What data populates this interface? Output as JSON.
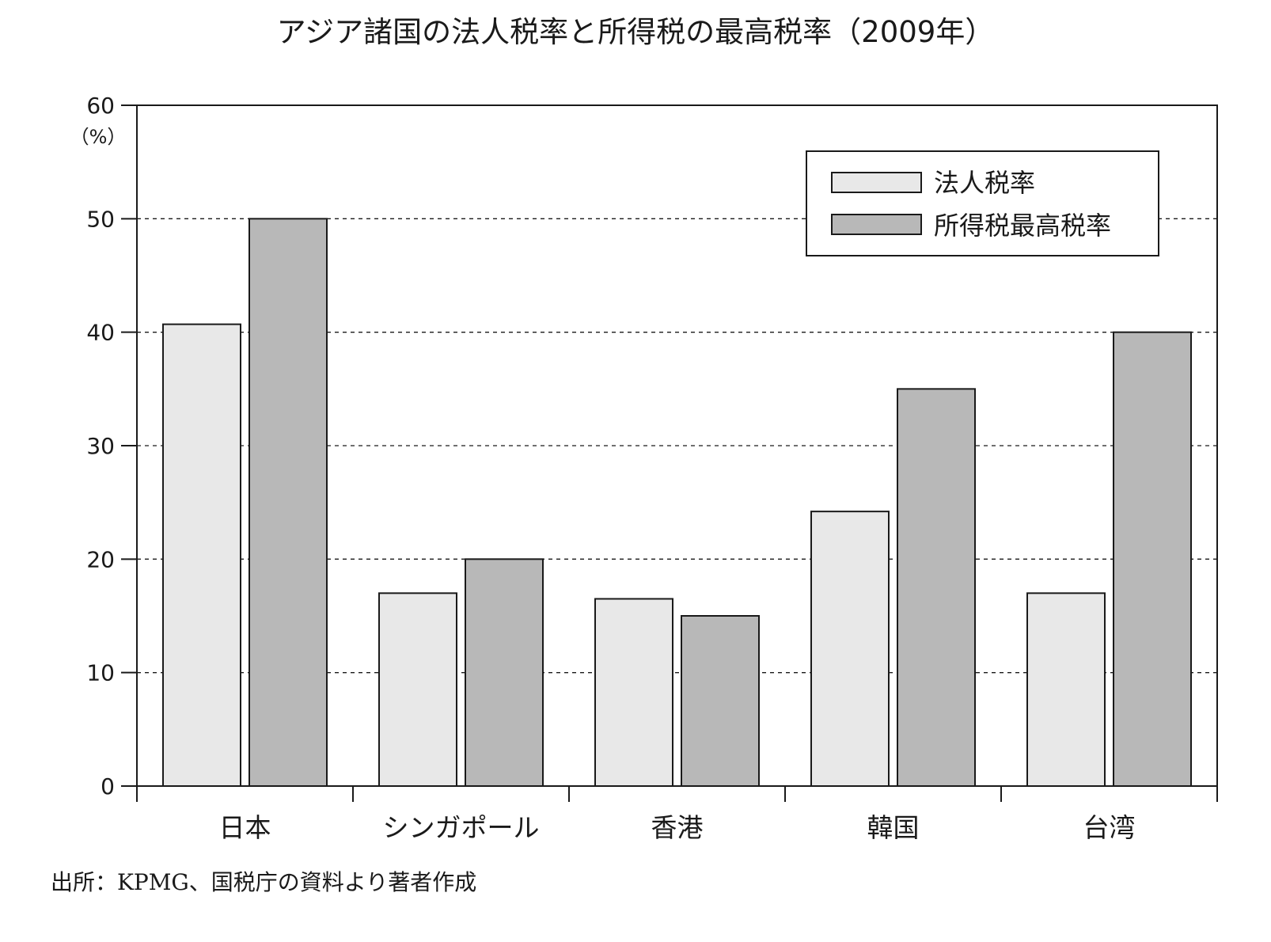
{
  "chart_data": {
    "type": "bar",
    "title": "アジア諸国の法人税率と所得税の最高税率（2009年）",
    "ylabel": "（%）",
    "xlabel": "",
    "ylim": [
      0,
      60
    ],
    "yticks": [
      0,
      10,
      20,
      30,
      40,
      50,
      60
    ],
    "grid": "horizontal dashed",
    "legend_position": "top-right",
    "categories": [
      "日本",
      "シンガポール",
      "香港",
      "韓国",
      "台湾"
    ],
    "series": [
      {
        "name": "法人税率",
        "color": "#e8e8e8",
        "values": [
          40.7,
          17,
          16.5,
          24.2,
          17
        ]
      },
      {
        "name": "所得税最高税率",
        "color": "#b8b8b8",
        "values": [
          50,
          20,
          15,
          35,
          40
        ]
      }
    ]
  },
  "source": "出所：KPMG、国税庁の資料より著者作成"
}
